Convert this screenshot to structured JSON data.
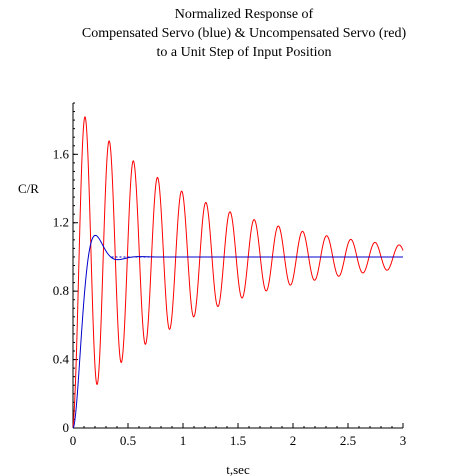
{
  "chart_data": {
    "type": "line",
    "title_lines": [
      "Normalized Response of",
      "Compensated Servo (blue) &  Uncompensated Servo (red)",
      "to a Unit Step of Input  Position"
    ],
    "xlabel": "t,sec",
    "ylabel": "C/R",
    "xlim": [
      0,
      3
    ],
    "ylim": [
      0,
      1.9
    ],
    "x_ticks": [
      0,
      0.5,
      1,
      1.5,
      2,
      2.5,
      3
    ],
    "x_tick_labels": [
      "0",
      "0.5",
      "1",
      "1.5",
      "2",
      "2.5",
      "3"
    ],
    "y_ticks": [
      0,
      0.4,
      0.8,
      1.2,
      1.6
    ],
    "y_tick_labels": [
      "0",
      "0.4",
      "0.8",
      "1.2",
      "1.6"
    ],
    "grid": false,
    "legend": "none",
    "series": [
      {
        "color": "#ff0000",
        "description_in_title": "Uncompensated Servo (red)",
        "model": {
          "final_value": 1.0,
          "overshoot": 0.9,
          "decay_per_sec": 0.86,
          "omega_d_rad_per_sec": 28.6
        },
        "peaks": [
          {
            "x": 0.11,
            "y": 1.9
          },
          {
            "x": 0.33,
            "y": 1.73
          },
          {
            "x": 0.55,
            "y": 1.6
          },
          {
            "x": 0.77,
            "y": 1.48
          },
          {
            "x": 0.99,
            "y": 1.4
          },
          {
            "x": 1.21,
            "y": 1.33
          },
          {
            "x": 1.43,
            "y": 1.27
          },
          {
            "x": 1.65,
            "y": 1.22
          },
          {
            "x": 1.87,
            "y": 1.18
          },
          {
            "x": 2.09,
            "y": 1.14
          },
          {
            "x": 2.31,
            "y": 1.12
          },
          {
            "x": 2.53,
            "y": 1.1
          },
          {
            "x": 2.75,
            "y": 1.08
          },
          {
            "x": 2.97,
            "y": 1.06
          }
        ],
        "troughs": [
          {
            "x": 0.22,
            "y": 0.18
          },
          {
            "x": 0.44,
            "y": 0.33
          },
          {
            "x": 0.66,
            "y": 0.46
          },
          {
            "x": 0.88,
            "y": 0.56
          },
          {
            "x": 1.1,
            "y": 0.64
          },
          {
            "x": 1.32,
            "y": 0.71
          },
          {
            "x": 1.54,
            "y": 0.76
          },
          {
            "x": 1.76,
            "y": 0.8
          },
          {
            "x": 1.98,
            "y": 0.84
          },
          {
            "x": 2.2,
            "y": 0.87
          },
          {
            "x": 2.42,
            "y": 0.89
          },
          {
            "x": 2.64,
            "y": 0.91
          },
          {
            "x": 2.86,
            "y": 0.93
          }
        ],
        "end_point": {
          "x": 3.0,
          "y": 0.93
        }
      },
      {
        "color": "#0000cc",
        "description_in_title": "Compensated Servo (blue)",
        "model": {
          "final_value": 1.0,
          "overshoot": 0.13,
          "peak_time": 0.13,
          "settle_time": 0.35
        },
        "points": [
          {
            "x": 0.0,
            "y": 0.0
          },
          {
            "x": 0.03,
            "y": 0.35
          },
          {
            "x": 0.06,
            "y": 0.78
          },
          {
            "x": 0.09,
            "y": 1.06
          },
          {
            "x": 0.13,
            "y": 1.13
          },
          {
            "x": 0.17,
            "y": 1.09
          },
          {
            "x": 0.21,
            "y": 1.02
          },
          {
            "x": 0.25,
            "y": 0.99
          },
          {
            "x": 0.35,
            "y": 1.005
          },
          {
            "x": 3.0,
            "y": 1.0
          }
        ]
      }
    ]
  }
}
